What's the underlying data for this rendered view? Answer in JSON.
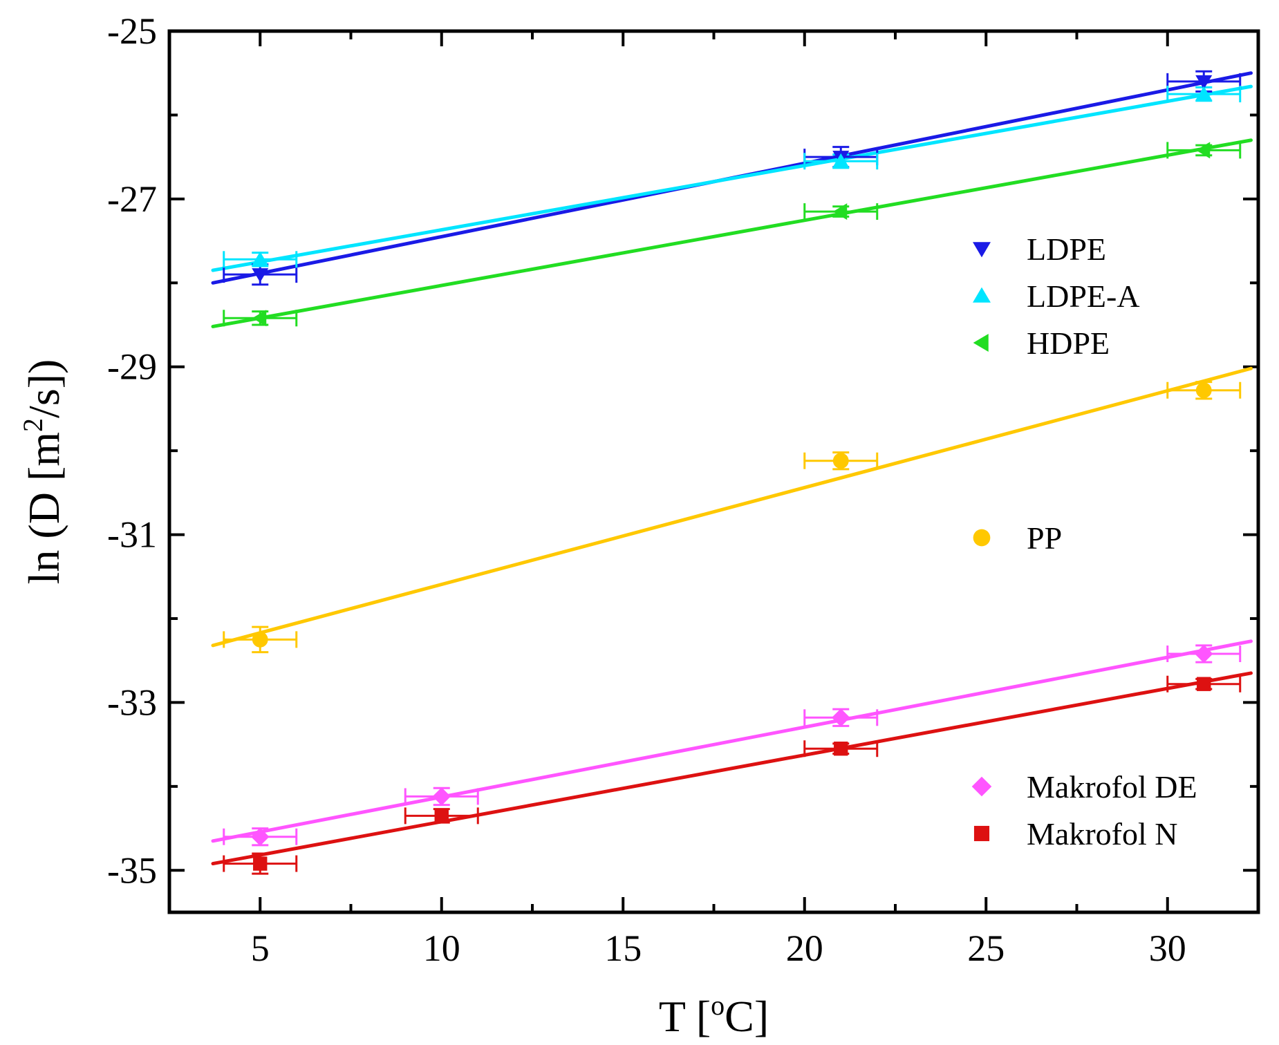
{
  "chart_data": {
    "type": "scatter",
    "title": "",
    "xlabel": "T [",
    "xlabel_sup": "o",
    "xlabel_end": "C]",
    "ylabel": "ln (D [m",
    "ylabel_sup": "2",
    "ylabel_end": "/s])",
    "xlim": [
      2.5,
      32.5
    ],
    "ylim": [
      -35.5,
      -25
    ],
    "x_ticks": [
      5,
      10,
      15,
      20,
      25,
      30
    ],
    "y_ticks": [
      -35,
      -33,
      -31,
      -29,
      -27,
      -25
    ],
    "x_minor_ticks": [
      7.5,
      12.5,
      17.5,
      22.5,
      27.5
    ],
    "y_minor_ticks": [
      -34,
      -32,
      -30,
      -28,
      -26
    ],
    "series": [
      {
        "name": "LDPE",
        "color": "#1a1ae6",
        "marker": "triangle-down",
        "points": [
          {
            "x": 5,
            "y": -27.9,
            "xerr": 1,
            "yerr": 0.12
          },
          {
            "x": 21,
            "y": -26.5,
            "xerr": 1,
            "yerr": 0.12
          },
          {
            "x": 31,
            "y": -25.6,
            "xerr": 1,
            "yerr": 0.12
          }
        ],
        "fit": {
          "x": [
            3.7,
            32.3
          ],
          "y": [
            -28.0,
            -25.5
          ]
        }
      },
      {
        "name": "LDPE-A",
        "color": "#00e5ff",
        "marker": "triangle-up",
        "points": [
          {
            "x": 5,
            "y": -27.72,
            "xerr": 1,
            "yerr": 0.08
          },
          {
            "x": 21,
            "y": -26.55,
            "xerr": 1,
            "yerr": 0.08
          },
          {
            "x": 31,
            "y": -25.75,
            "xerr": 1,
            "yerr": 0.08
          }
        ],
        "fit": {
          "x": [
            3.7,
            32.3
          ],
          "y": [
            -27.85,
            -25.66
          ]
        }
      },
      {
        "name": "HDPE",
        "color": "#22dd22",
        "marker": "triangle-left",
        "points": [
          {
            "x": 5,
            "y": -28.42,
            "xerr": 1,
            "yerr": 0.08
          },
          {
            "x": 21,
            "y": -27.15,
            "xerr": 1,
            "yerr": 0.06
          },
          {
            "x": 31,
            "y": -26.42,
            "xerr": 1,
            "yerr": 0.06
          }
        ],
        "fit": {
          "x": [
            3.7,
            32.3
          ],
          "y": [
            -28.52,
            -26.3
          ]
        }
      },
      {
        "name": "PP",
        "color": "#ffc800",
        "marker": "circle",
        "points": [
          {
            "x": 5,
            "y": -32.25,
            "xerr": 1,
            "yerr": 0.15
          },
          {
            "x": 21,
            "y": -30.12,
            "xerr": 1,
            "yerr": 0.1
          },
          {
            "x": 31,
            "y": -29.28,
            "xerr": 1,
            "yerr": 0.1
          }
        ],
        "fit": {
          "x": [
            3.7,
            32.3
          ],
          "y": [
            -32.32,
            -29.02
          ]
        }
      },
      {
        "name": "Makrofol DE",
        "color": "#ff55ff",
        "marker": "diamond",
        "points": [
          {
            "x": 5,
            "y": -34.6,
            "xerr": 1,
            "yerr": 0.1
          },
          {
            "x": 10,
            "y": -34.12,
            "xerr": 1,
            "yerr": 0.1
          },
          {
            "x": 21,
            "y": -33.18,
            "xerr": 1,
            "yerr": 0.1
          },
          {
            "x": 31,
            "y": -32.42,
            "xerr": 1,
            "yerr": 0.1
          }
        ],
        "fit": {
          "x": [
            3.7,
            32.3
          ],
          "y": [
            -34.65,
            -32.27
          ]
        }
      },
      {
        "name": "Makrofol N",
        "color": "#dd1111",
        "marker": "square",
        "points": [
          {
            "x": 5,
            "y": -34.92,
            "xerr": 1,
            "yerr": 0.12
          },
          {
            "x": 10,
            "y": -34.35,
            "xerr": 1,
            "yerr": 0.08
          },
          {
            "x": 21,
            "y": -33.55,
            "xerr": 1,
            "yerr": 0.06
          },
          {
            "x": 31,
            "y": -32.78,
            "xerr": 1,
            "yerr": 0.06
          }
        ],
        "fit": {
          "x": [
            3.7,
            32.3
          ],
          "y": [
            -34.92,
            -32.65
          ]
        }
      }
    ],
    "legend_groups": [
      {
        "placement": "upper-right",
        "entries": [
          "LDPE",
          "LDPE-A",
          "HDPE"
        ]
      },
      {
        "placement": "middle-right",
        "entries": [
          "PP"
        ]
      },
      {
        "placement": "lower-right",
        "entries": [
          "Makrofol DE",
          "Makrofol N"
        ]
      }
    ]
  }
}
